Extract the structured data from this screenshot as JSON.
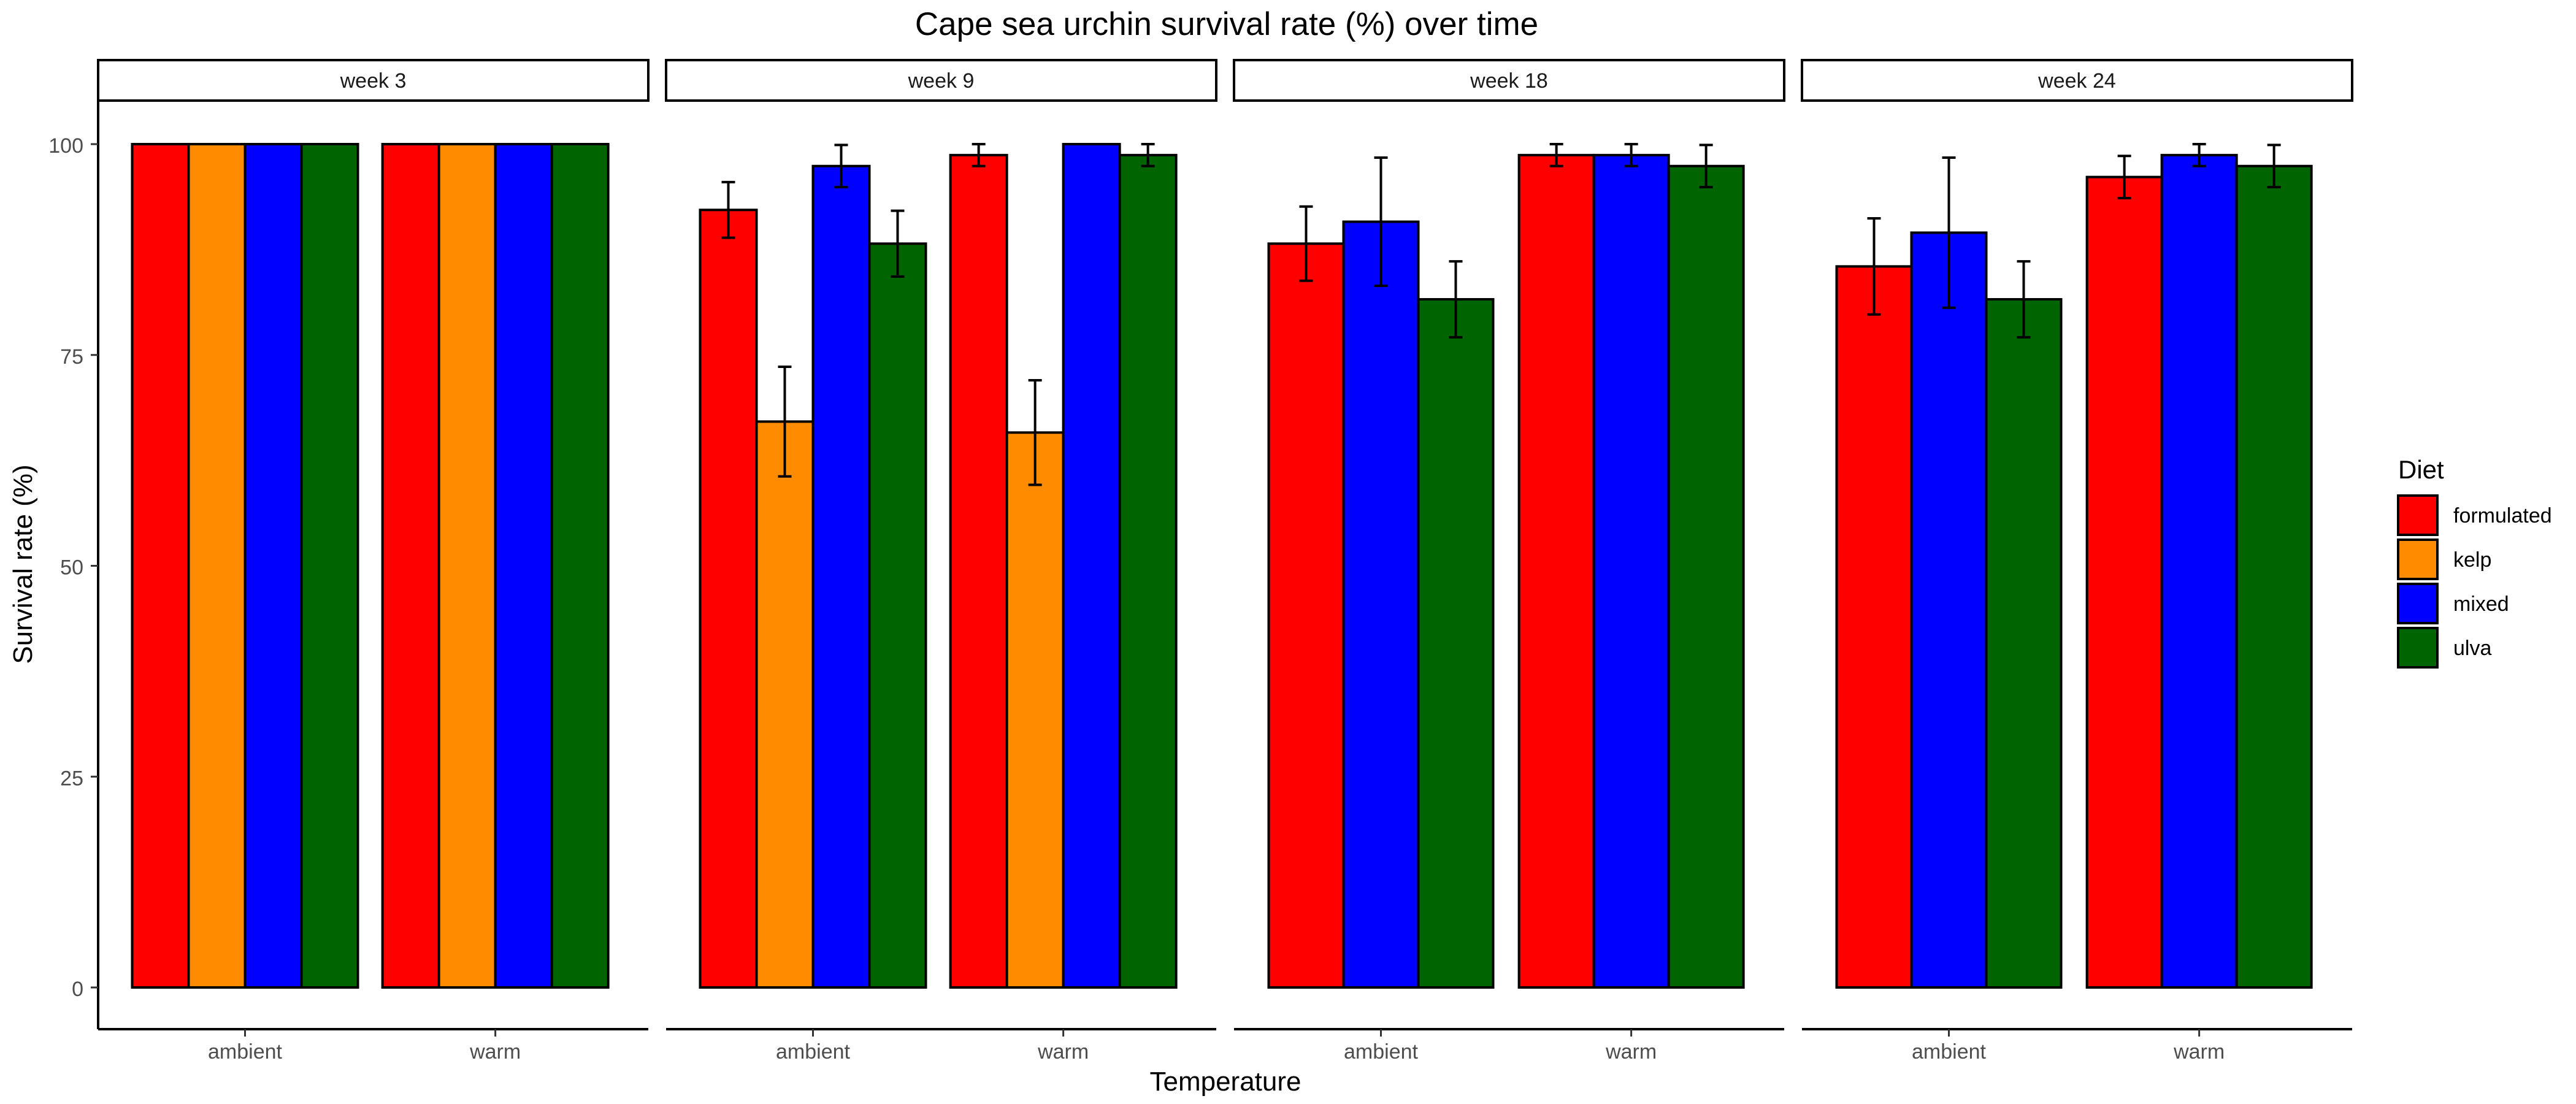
{
  "chart_data": {
    "type": "bar",
    "title": "Cape sea urchin survival rate (%) over time",
    "xlabel": "Temperature",
    "ylabel": "Survival rate (%)",
    "ylim": [
      0,
      100
    ],
    "yticks": [
      0,
      25,
      50,
      75,
      100
    ],
    "grid": false,
    "legend": {
      "title": "Diet",
      "position": "right",
      "entries": [
        {
          "key": "formulated",
          "label": "formulated",
          "color": "#ff0000"
        },
        {
          "key": "kelp",
          "label": "kelp",
          "color": "#ff8c00"
        },
        {
          "key": "mixed",
          "label": "mixed",
          "color": "#0000ff"
        },
        {
          "key": "ulva",
          "label": "ulva",
          "color": "#006400"
        }
      ]
    },
    "facets": [
      {
        "label": "week 3",
        "groups": [
          {
            "label": "ambient",
            "bars": [
              {
                "diet": "formulated",
                "value": 100,
                "err": null
              },
              {
                "diet": "kelp",
                "value": 100,
                "err": null
              },
              {
                "diet": "mixed",
                "value": 100,
                "err": null
              },
              {
                "diet": "ulva",
                "value": 100,
                "err": null
              }
            ]
          },
          {
            "label": "warm",
            "bars": [
              {
                "diet": "formulated",
                "value": 100,
                "err": null
              },
              {
                "diet": "kelp",
                "value": 100,
                "err": null
              },
              {
                "diet": "mixed",
                "value": 100,
                "err": null
              },
              {
                "diet": "ulva",
                "value": 100,
                "err": null
              }
            ]
          }
        ]
      },
      {
        "label": "week 9",
        "groups": [
          {
            "label": "ambient",
            "bars": [
              {
                "diet": "formulated",
                "value": 92.2,
                "err": [
                  88.9,
                  95.5
                ]
              },
              {
                "diet": "kelp",
                "value": 67.1,
                "err": [
                  60.6,
                  73.6
                ]
              },
              {
                "diet": "mixed",
                "value": 97.4,
                "err": [
                  94.9,
                  99.9
                ]
              },
              {
                "diet": "ulva",
                "value": 88.2,
                "err": [
                  84.3,
                  92.1
                ]
              }
            ]
          },
          {
            "label": "warm",
            "bars": [
              {
                "diet": "formulated",
                "value": 98.7,
                "err": [
                  97.4,
                  100
                ]
              },
              {
                "diet": "kelp",
                "value": 65.8,
                "err": [
                  59.6,
                  72.0
                ]
              },
              {
                "diet": "mixed",
                "value": 100,
                "err": null
              },
              {
                "diet": "ulva",
                "value": 98.7,
                "err": [
                  97.4,
                  100
                ]
              }
            ]
          }
        ]
      },
      {
        "label": "week 18",
        "groups": [
          {
            "label": "ambient",
            "bars": [
              {
                "diet": "formulated",
                "value": 88.2,
                "err": [
                  83.8,
                  92.6
                ]
              },
              {
                "diet": "mixed",
                "value": 90.8,
                "err": [
                  83.2,
                  98.4
                ]
              },
              {
                "diet": "ulva",
                "value": 81.6,
                "err": [
                  77.1,
                  86.1
                ]
              }
            ]
          },
          {
            "label": "warm",
            "bars": [
              {
                "diet": "formulated",
                "value": 98.7,
                "err": [
                  97.4,
                  100
                ]
              },
              {
                "diet": "mixed",
                "value": 98.7,
                "err": [
                  97.4,
                  100
                ]
              },
              {
                "diet": "ulva",
                "value": 97.4,
                "err": [
                  94.9,
                  99.9
                ]
              }
            ]
          }
        ]
      },
      {
        "label": "week 24",
        "groups": [
          {
            "label": "ambient",
            "bars": [
              {
                "diet": "formulated",
                "value": 85.5,
                "err": [
                  79.8,
                  91.2
                ]
              },
              {
                "diet": "mixed",
                "value": 89.5,
                "err": [
                  80.6,
                  98.4
                ]
              },
              {
                "diet": "ulva",
                "value": 81.6,
                "err": [
                  77.1,
                  86.1
                ]
              }
            ]
          },
          {
            "label": "warm",
            "bars": [
              {
                "diet": "formulated",
                "value": 96.1,
                "err": [
                  93.6,
                  98.6
                ]
              },
              {
                "diet": "mixed",
                "value": 98.7,
                "err": [
                  97.4,
                  100
                ]
              },
              {
                "diet": "ulva",
                "value": 97.4,
                "err": [
                  94.9,
                  99.9
                ]
              }
            ]
          }
        ]
      }
    ]
  }
}
